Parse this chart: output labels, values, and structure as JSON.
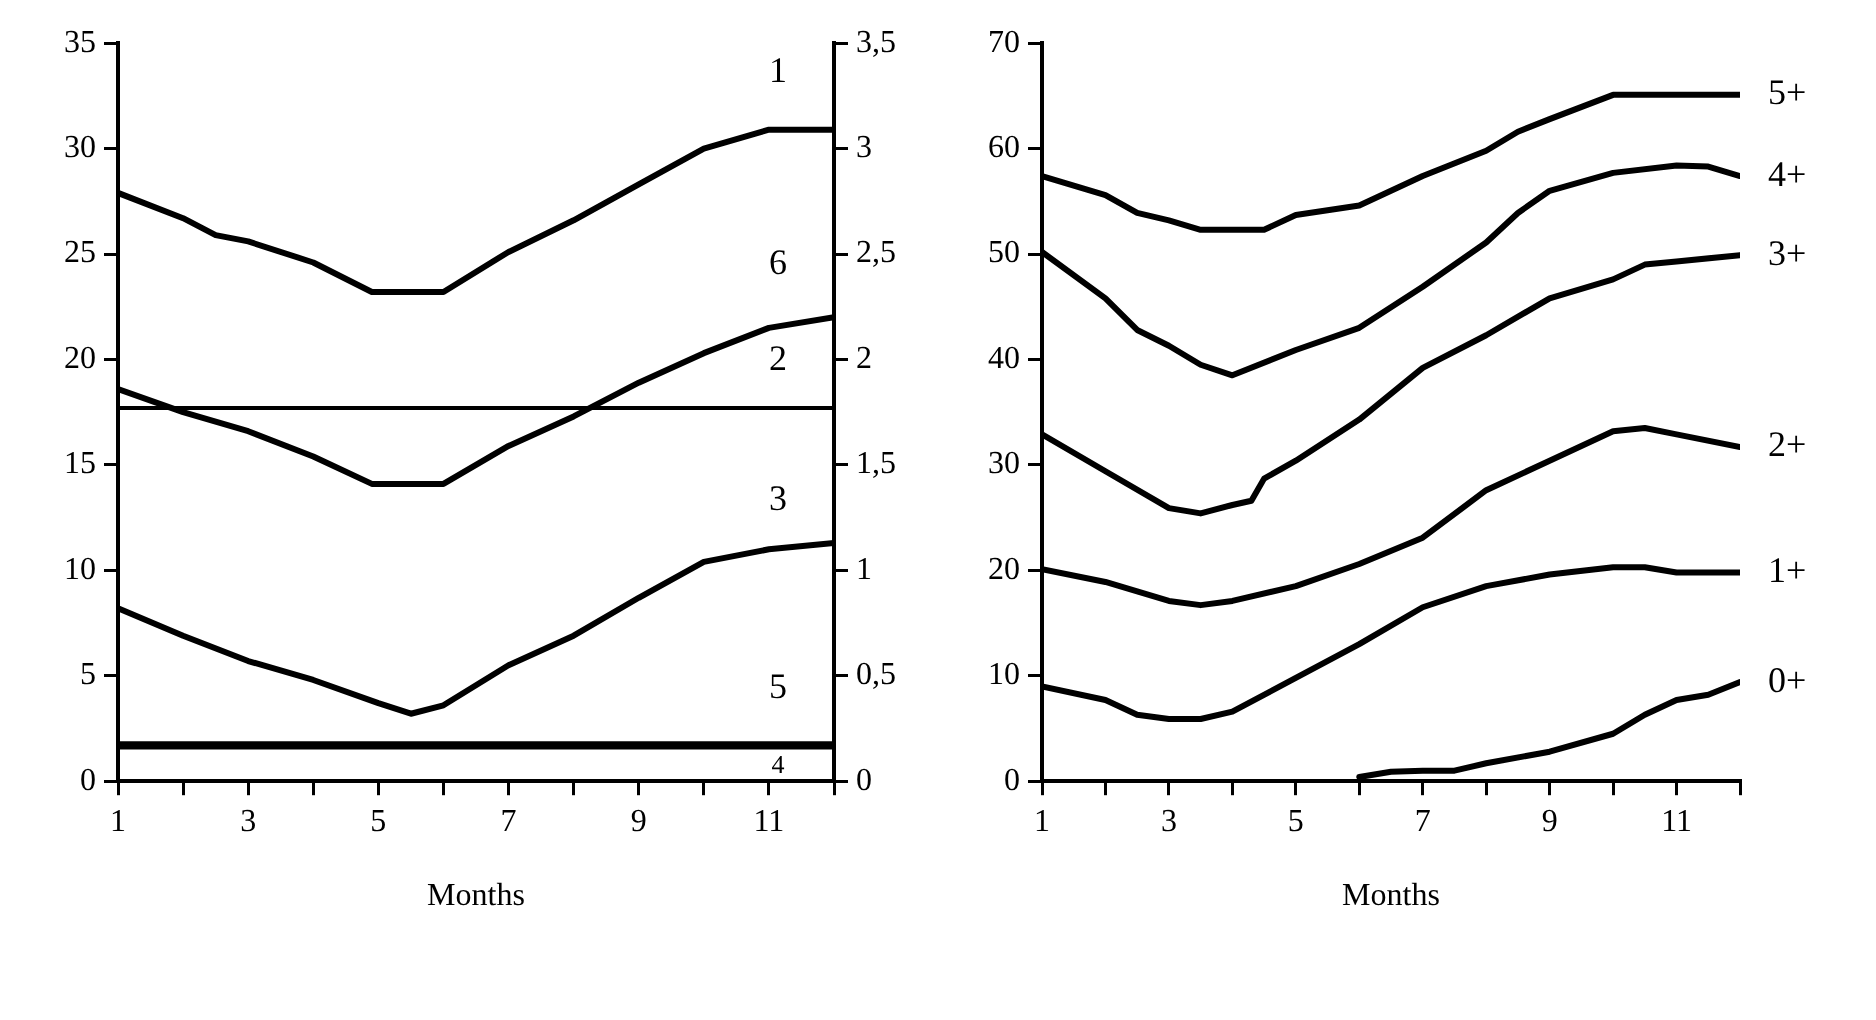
{
  "chart_data": [
    {
      "type": "line",
      "xlabel": "Months",
      "xlim": [
        1,
        12
      ],
      "xticks": [
        1,
        {
          "value": 2,
          "label": null
        },
        3,
        {
          "value": 4,
          "label": null
        },
        5,
        {
          "value": 6,
          "label": null
        },
        7,
        {
          "value": 8,
          "label": null
        },
        9,
        {
          "value": 10,
          "label": null
        },
        11,
        {
          "value": 12,
          "label": null
        }
      ],
      "ylim": [
        0,
        35
      ],
      "yticks": [
        0,
        5,
        10,
        15,
        20,
        25,
        30,
        35
      ],
      "y2lim": [
        0,
        3.5
      ],
      "y2ticks": [
        0,
        {
          "value": 0.5,
          "label": "0,5"
        },
        1,
        {
          "value": 1.5,
          "label": "1,5"
        },
        2,
        {
          "value": 2.5,
          "label": "2,5"
        },
        3,
        {
          "value": 3.5,
          "label": "3,5"
        }
      ],
      "series": [
        {
          "color": "#000000",
          "x": [
            1,
            2,
            2.5,
            3,
            4,
            4.9,
            6,
            7,
            8,
            9,
            10,
            11,
            12
          ],
          "values": [
            27.9,
            26.7,
            25.9,
            25.6,
            24.6,
            23.2,
            23.2,
            25.1,
            26.6,
            28.3,
            30.0,
            30.9,
            30.9
          ]
        },
        {
          "color": "#000000",
          "x": [
            1,
            2,
            3,
            4,
            4.9,
            6,
            7,
            8,
            9,
            10,
            11,
            12
          ],
          "values": [
            18.6,
            17.5,
            16.6,
            15.4,
            14.1,
            14.1,
            15.9,
            17.3,
            18.9,
            20.3,
            21.5,
            22.0
          ]
        },
        {
          "color": "#000000",
          "x": [
            1,
            2,
            3,
            4,
            5,
            5.5,
            6,
            7,
            8,
            9,
            10,
            11,
            12
          ],
          "values": [
            8.2,
            6.9,
            5.7,
            4.8,
            3.7,
            3.2,
            3.6,
            5.5,
            6.9,
            8.7,
            10.4,
            11.0,
            11.3
          ]
        }
      ],
      "ref_lines": [
        {
          "axis": "y",
          "value": 17.7,
          "color": "#000000"
        }
      ],
      "bands": [
        {
          "axis": "y",
          "from": 1.5,
          "to": 1.9,
          "color": "#000000"
        }
      ],
      "annotations": [
        "1",
        "6",
        "2",
        "3",
        "5",
        "4"
      ],
      "grid": false,
      "legend": false,
      "marker": "none",
      "line_style": "solid"
    },
    {
      "type": "line",
      "xlabel": "Months",
      "xlim": [
        1,
        12
      ],
      "xticks": [
        1,
        {
          "value": 2,
          "label": null
        },
        3,
        {
          "value": 4,
          "label": null
        },
        5,
        {
          "value": 6,
          "label": null
        },
        7,
        {
          "value": 8,
          "label": null
        },
        9,
        {
          "value": 10,
          "label": null
        },
        11,
        {
          "value": 12,
          "label": null
        }
      ],
      "ylim": [
        0,
        70
      ],
      "yticks": [
        0,
        10,
        20,
        30,
        40,
        50,
        60,
        70
      ],
      "series": [
        {
          "name": "5+",
          "color": "#000000",
          "x": [
            1,
            2,
            2.5,
            3,
            3.5,
            4,
            4.5,
            5,
            6,
            7,
            8,
            8.5,
            9,
            10,
            11,
            12
          ],
          "values": [
            57.4,
            55.6,
            53.9,
            53.2,
            52.3,
            52.3,
            52.3,
            53.7,
            54.6,
            57.4,
            59.8,
            61.6,
            62.8,
            65.1,
            65.1,
            65.1
          ]
        },
        {
          "name": "4+",
          "color": "#000000",
          "x": [
            1,
            2,
            2.5,
            3,
            3.5,
            4,
            5,
            6,
            7,
            8,
            8.5,
            9,
            10,
            11,
            11.5,
            12
          ],
          "values": [
            50.2,
            45.8,
            42.8,
            41.3,
            39.5,
            38.5,
            40.9,
            43.0,
            46.9,
            51.1,
            53.9,
            56.0,
            57.7,
            58.4,
            58.3,
            57.4
          ]
        },
        {
          "name": "3+",
          "color": "#000000",
          "x": [
            1,
            2,
            3,
            3.5,
            4,
            4.3,
            4.5,
            5,
            6,
            7,
            8,
            9,
            10,
            10.5,
            11,
            12
          ],
          "values": [
            32.9,
            29.4,
            25.9,
            25.4,
            26.2,
            26.6,
            28.7,
            30.4,
            34.3,
            39.2,
            42.3,
            45.8,
            47.6,
            49.0,
            49.3,
            49.9
          ]
        },
        {
          "name": "2+",
          "color": "#000000",
          "x": [
            1,
            2,
            3,
            3.5,
            4,
            5,
            6,
            7,
            8,
            9,
            10,
            10.5,
            11,
            12
          ],
          "values": [
            20.1,
            18.9,
            17.1,
            16.7,
            17.1,
            18.5,
            20.6,
            23.1,
            27.6,
            30.4,
            33.2,
            33.5,
            32.9,
            31.7
          ]
        },
        {
          "name": "1+",
          "color": "#000000",
          "x": [
            1,
            2,
            2.5,
            3,
            3.5,
            4,
            5,
            6,
            7,
            8,
            9,
            10,
            10.5,
            11,
            12
          ],
          "values": [
            9.0,
            7.7,
            6.3,
            5.9,
            5.9,
            6.6,
            9.8,
            13.0,
            16.5,
            18.5,
            19.6,
            20.3,
            20.3,
            19.8,
            19.8
          ]
        },
        {
          "name": "0+",
          "color": "#000000",
          "x": [
            6,
            6.5,
            7,
            7.5,
            8,
            9,
            10,
            10.5,
            11,
            11.5,
            12
          ],
          "values": [
            0.4,
            0.9,
            1.0,
            1.0,
            1.7,
            2.8,
            4.5,
            6.3,
            7.7,
            8.2,
            9.4
          ]
        }
      ],
      "grid": false,
      "legend": false,
      "marker": "none",
      "line_style": "solid"
    }
  ]
}
